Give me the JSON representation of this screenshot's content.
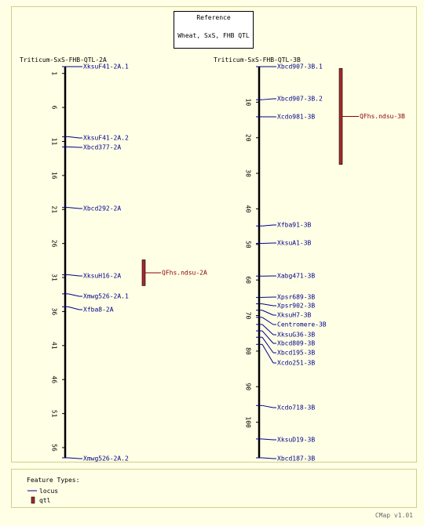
{
  "reference": {
    "title": "Reference",
    "subtitle": "Wheat, SxS, FHB QTL"
  },
  "colors": {
    "marker": "#00008b",
    "qtl_fill": "#a52a2a",
    "qtl_text": "#8b0000",
    "axis": "#000000",
    "panel_border": "#d0d08a"
  },
  "maps": [
    {
      "name": "Triticum-SxS-FHB-QTL-2A",
      "range": [
        0,
        57.5
      ],
      "ticks": [
        1,
        6,
        11,
        16,
        21,
        26,
        31,
        36,
        41,
        46,
        51,
        56
      ],
      "markers": [
        {
          "name": "XksuF41-2A.1",
          "pos": 0
        },
        {
          "name": "XksuF41-2A.2",
          "pos": 10.3
        },
        {
          "name": "Xbcd377-2A",
          "pos": 11.8
        },
        {
          "name": "Xbcd292-2A",
          "pos": 20.7
        },
        {
          "name": "XksuH16-2A",
          "pos": 30.6
        },
        {
          "name": "Xmwg526-2A.1",
          "pos": 33.4
        },
        {
          "name": "Xfba8-2A",
          "pos": 35.3
        },
        {
          "name": "Xmwg526-2A.2",
          "pos": 57.5
        }
      ],
      "qtl": [
        {
          "name": "QFhs.ndsu-2A",
          "start": 28.4,
          "end": 32.2
        }
      ]
    },
    {
      "name": "Triticum-SxS-FHB-QTL-3B",
      "range": [
        0,
        110
      ],
      "ticks": [
        10,
        20,
        30,
        40,
        50,
        60,
        70,
        80,
        90,
        100
      ],
      "markers": [
        {
          "name": "Xbcd907-3B.1",
          "pos": 0
        },
        {
          "name": "Xbcd907-3B.2",
          "pos": 9.3
        },
        {
          "name": "Xcdo981-3B",
          "pos": 14.1
        },
        {
          "name": "Xfba91-3B",
          "pos": 44.8
        },
        {
          "name": "XksuA1-3B",
          "pos": 49.7
        },
        {
          "name": "Xabg471-3B",
          "pos": 58.9
        },
        {
          "name": "Xpsr689-3B",
          "pos": 64.9
        },
        {
          "name": "Xpsr902-3B",
          "pos": 66.7
        },
        {
          "name": "XksuH7-3B",
          "pos": 68.5
        },
        {
          "name": "Centromere-3B",
          "pos": 70.5
        },
        {
          "name": "XksuG36-3B",
          "pos": 72.5
        },
        {
          "name": "Xbcd809-3B",
          "pos": 74.3
        },
        {
          "name": "Xbcd195-3B",
          "pos": 76.1
        },
        {
          "name": "Xcdo251-3B",
          "pos": 78.1
        },
        {
          "name": "Xcdo718-3B",
          "pos": 95.3
        },
        {
          "name": "XksuD19-3B",
          "pos": 104.7
        },
        {
          "name": "Xbcd187-3B",
          "pos": 110
        }
      ],
      "qtl": [
        {
          "name": "QFhs.ndsu-3B",
          "start": 0.5,
          "end": 27.5
        }
      ]
    }
  ],
  "legend": {
    "title": "Feature Types:",
    "items": [
      {
        "label": "locus",
        "icon": "line-icon"
      },
      {
        "label": "qtl",
        "icon": "bar-icon"
      }
    ]
  },
  "version": "CMap v1.01"
}
